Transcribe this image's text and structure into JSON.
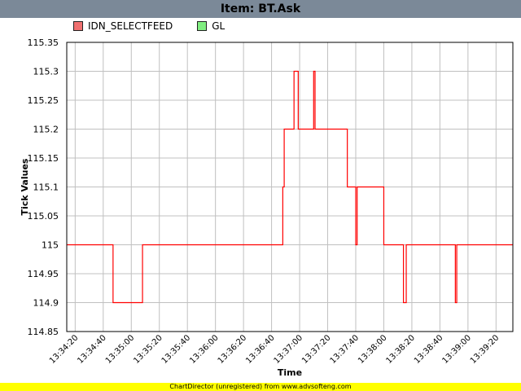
{
  "title": "Item: BT.Ask",
  "legend": [
    {
      "name": "IDN_SELECTFEED",
      "color": "#f07070"
    },
    {
      "name": "GL",
      "color": "#80ee80"
    }
  ],
  "footer": "ChartDirector (unregistered) from www.advsofteng.com",
  "chart_data": {
    "type": "line",
    "xlabel": "Time",
    "ylabel": "Tick Values",
    "ylim": [
      114.85,
      115.35
    ],
    "yticks": [
      115.35,
      115.3,
      115.25,
      115.2,
      115.15,
      115.1,
      115.05,
      115,
      114.95,
      114.9,
      114.85
    ],
    "xlim": [
      "13:34:14",
      "13:39:32"
    ],
    "xticks": [
      "13:34:20",
      "13:34:40",
      "13:35:00",
      "13:35:20",
      "13:35:40",
      "13:36:00",
      "13:36:20",
      "13:36:40",
      "13:37:00",
      "13:37:20",
      "13:37:40",
      "13:38:00",
      "13:38:20",
      "13:38:40",
      "13:39:00",
      "13:39:20"
    ],
    "grid": true,
    "legend_position": "top-left",
    "series": [
      {
        "name": "IDN_SELECTFEED",
        "color": "#ff0000",
        "step": true,
        "points": [
          [
            "13:34:14",
            115.0
          ],
          [
            "13:34:47",
            114.9
          ],
          [
            "13:35:08",
            115.0
          ],
          [
            "13:36:48",
            115.1
          ],
          [
            "13:36:49",
            115.2
          ],
          [
            "13:36:56",
            115.3
          ],
          [
            "13:36:59",
            115.2
          ],
          [
            "13:37:10",
            115.3
          ],
          [
            "13:37:11",
            115.2
          ],
          [
            "13:37:34",
            115.1
          ],
          [
            "13:37:40",
            115.0
          ],
          [
            "13:37:41",
            115.1
          ],
          [
            "13:38:00",
            115.0
          ],
          [
            "13:38:14",
            114.9
          ],
          [
            "13:38:16",
            115.0
          ],
          [
            "13:38:51",
            114.9
          ],
          [
            "13:38:52",
            115.0
          ],
          [
            "13:39:32",
            115.0
          ]
        ]
      },
      {
        "name": "GL",
        "color": "#80ee80",
        "step": true,
        "points": []
      }
    ]
  }
}
